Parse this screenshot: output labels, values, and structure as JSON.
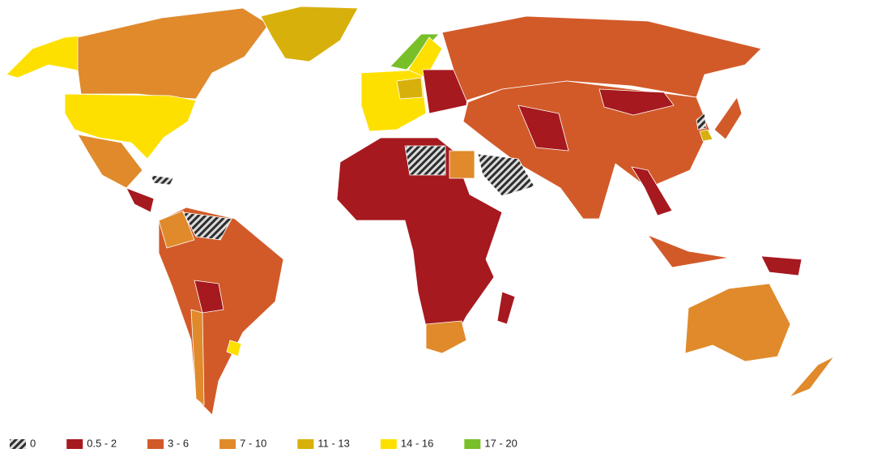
{
  "legend": {
    "items": [
      {
        "label": "0",
        "color": "#2e2e2e",
        "pattern": "hatch"
      },
      {
        "label": "0.5 - 2",
        "color": "#a6191f"
      },
      {
        "label": "3 - 6",
        "color": "#d25a29"
      },
      {
        "label": "7 - 10",
        "color": "#e08a2c"
      },
      {
        "label": "11 - 13",
        "color": "#d8b00b"
      },
      {
        "label": "14 - 16",
        "color": "#fde000"
      },
      {
        "label": "17 - 20",
        "color": "#78bf2a"
      }
    ]
  }
}
